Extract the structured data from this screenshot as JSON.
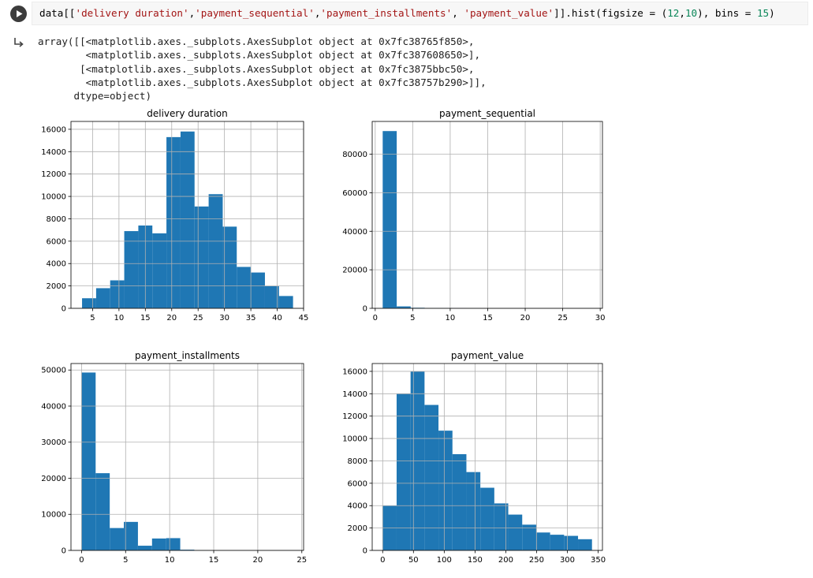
{
  "cell": {
    "code_parts": [
      {
        "t": "data[[",
        "c": "plain"
      },
      {
        "t": "'delivery duration'",
        "c": "str"
      },
      {
        "t": ",",
        "c": "plain"
      },
      {
        "t": "'payment_sequential'",
        "c": "str"
      },
      {
        "t": ",",
        "c": "plain"
      },
      {
        "t": "'payment_installments'",
        "c": "str"
      },
      {
        "t": ", ",
        "c": "plain"
      },
      {
        "t": "'payment_value'",
        "c": "str"
      },
      {
        "t": "]].hist(figsize = (",
        "c": "plain"
      },
      {
        "t": "12",
        "c": "num"
      },
      {
        "t": ",",
        "c": "plain"
      },
      {
        "t": "10",
        "c": "num"
      },
      {
        "t": "), bins = ",
        "c": "plain"
      },
      {
        "t": "15",
        "c": "num"
      },
      {
        "t": ")",
        "c": "plain"
      }
    ],
    "run_icon": "play-icon",
    "output_icon": "output-redirect-icon"
  },
  "output": {
    "lines": [
      "array([[<matplotlib.axes._subplots.AxesSubplot object at 0x7fc38765f850>,",
      "        <matplotlib.axes._subplots.AxesSubplot object at 0x7fc387608650>],",
      "       [<matplotlib.axes._subplots.AxesSubplot object at 0x7fc3875bbc50>,",
      "        <matplotlib.axes._subplots.AxesSubplot object at 0x7fc38757b290>]],",
      "      dtype=object)"
    ]
  },
  "colors": {
    "bar": "#1f77b4",
    "grid": "#b0b0b0"
  },
  "chart_data": [
    {
      "type": "bar",
      "title": "delivery duration",
      "xlim": [
        0.9,
        45
      ],
      "ylim": [
        0,
        16700
      ],
      "xticks": [
        5,
        10,
        15,
        20,
        25,
        30,
        35,
        40,
        45
      ],
      "yticks": [
        0,
        2000,
        4000,
        6000,
        8000,
        10000,
        12000,
        14000,
        16000
      ],
      "bin_edges": [
        3,
        5.67,
        8.33,
        11,
        13.67,
        16.33,
        19,
        21.67,
        24.33,
        27,
        29.67,
        32.33,
        35,
        37.67,
        40.33,
        43
      ],
      "values": [
        900,
        1800,
        2500,
        6900,
        7400,
        6700,
        15300,
        15800,
        9100,
        10200,
        7300,
        3700,
        3200,
        2000,
        1100
      ],
      "grid": true
    },
    {
      "type": "bar",
      "title": "payment_sequential",
      "xlim": [
        -0.4,
        30.3
      ],
      "ylim": [
        0,
        97000
      ],
      "xticks": [
        0,
        5,
        10,
        15,
        20,
        25,
        30
      ],
      "yticks": [
        0,
        20000,
        40000,
        60000,
        80000
      ],
      "bin_edges": [
        1,
        2.87,
        4.73,
        6.6,
        8.47,
        10.33,
        12.2,
        14.07,
        15.93,
        17.8,
        19.67,
        21.53,
        23.4,
        25.27,
        27.13,
        29
      ],
      "values": [
        92000,
        1000,
        300,
        200,
        200,
        150,
        80,
        0,
        0,
        0,
        0,
        0,
        0,
        0,
        20
      ],
      "grid": true
    },
    {
      "type": "bar",
      "title": "payment_installments",
      "xlim": [
        -1.2,
        25.2
      ],
      "ylim": [
        0,
        51800
      ],
      "xticks": [
        0,
        5,
        10,
        15,
        20,
        25
      ],
      "yticks": [
        0,
        10000,
        20000,
        30000,
        40000,
        50000
      ],
      "bin_edges": [
        0,
        1.6,
        3.2,
        4.8,
        6.4,
        8,
        9.6,
        11.2,
        12.8,
        14.4,
        16,
        17.6,
        19.2,
        20.8,
        22.4,
        24
      ],
      "values": [
        49300,
        21400,
        6200,
        7900,
        1300,
        3300,
        3400,
        200,
        50,
        0,
        0,
        20,
        0,
        10,
        0
      ],
      "grid": true
    },
    {
      "type": "bar",
      "title": "payment_value",
      "xlim": [
        -17,
        357
      ],
      "ylim": [
        0,
        16700
      ],
      "xticks": [
        0,
        50,
        100,
        150,
        200,
        250,
        300,
        350
      ],
      "yticks": [
        0,
        2000,
        4000,
        6000,
        8000,
        10000,
        12000,
        14000,
        16000
      ],
      "bin_edges": [
        0,
        22.67,
        45.33,
        68,
        90.67,
        113.33,
        136,
        158.67,
        181.33,
        204,
        226.67,
        249.33,
        272,
        294.67,
        317.33,
        340
      ],
      "values": [
        4000,
        14000,
        16000,
        13000,
        10700,
        8600,
        7000,
        5600,
        4200,
        3200,
        2300,
        1600,
        1400,
        1300,
        1000
      ],
      "grid": true
    }
  ]
}
